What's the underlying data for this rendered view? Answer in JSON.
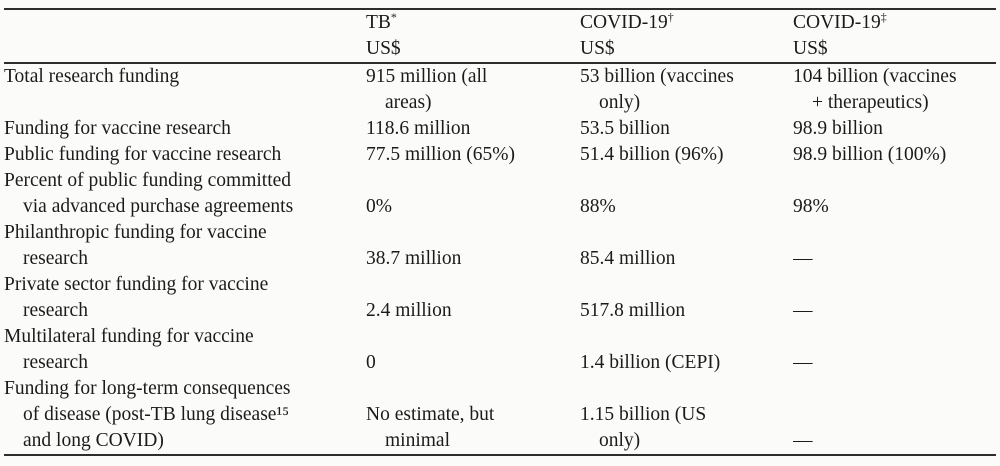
{
  "table": {
    "columns": [
      {
        "label": "",
        "mark": "",
        "sub": ""
      },
      {
        "label": "TB",
        "mark": "*",
        "sub": "US$"
      },
      {
        "label": "COVID-19",
        "mark": "†",
        "sub": "US$"
      },
      {
        "label": "COVID-19",
        "mark": "‡",
        "sub": "US$"
      }
    ],
    "rows": [
      {
        "label": [
          "Total research funding"
        ],
        "cells": [
          [
            "915 million (all",
            "areas)"
          ],
          [
            "53 billion (vaccines",
            "only)"
          ],
          [
            "104 billion (vaccines",
            "+ therapeutics)"
          ]
        ]
      },
      {
        "label": [
          "Funding for vaccine research"
        ],
        "cells": [
          [
            "118.6 million"
          ],
          [
            "53.5 billion"
          ],
          [
            "98.9 billion"
          ]
        ]
      },
      {
        "label": [
          "Public funding for vaccine research"
        ],
        "cells": [
          [
            "77.5 million (65%)"
          ],
          [
            "51.4 billion (96%)"
          ],
          [
            "98.9 billion (100%)"
          ]
        ]
      },
      {
        "label": [
          "Percent of public funding committed",
          "via advanced purchase agreements"
        ],
        "cells": [
          [
            "0%"
          ],
          [
            "88%"
          ],
          [
            "98%"
          ]
        ]
      },
      {
        "label": [
          "Philanthropic funding for vaccine",
          "research"
        ],
        "cells": [
          [
            "38.7 million"
          ],
          [
            "85.4 million"
          ],
          [
            "—"
          ]
        ]
      },
      {
        "label": [
          "Private sector funding for vaccine",
          "research"
        ],
        "cells": [
          [
            "2.4 million"
          ],
          [
            "517.8 million"
          ],
          [
            "—"
          ]
        ]
      },
      {
        "label": [
          "Multilateral funding for vaccine",
          "research"
        ],
        "cells": [
          [
            "0"
          ],
          [
            "1.4 billion (CEPI)"
          ],
          [
            "—"
          ]
        ]
      },
      {
        "label": [
          "Funding for long-term consequences",
          "of disease (post-TB lung disease¹⁵",
          "and long COVID)"
        ],
        "cells": [
          [
            "No estimate, but",
            "minimal"
          ],
          [
            "1.15 billion (US",
            "only)"
          ],
          [
            "—"
          ]
        ]
      }
    ]
  }
}
